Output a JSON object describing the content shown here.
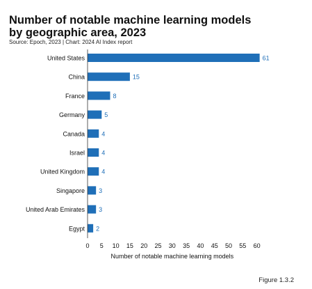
{
  "title": "Number of notable machine learning models by geographic area, 2023",
  "source": "Source: Epoch, 2023 | Chart: 2024 AI Index report",
  "figure_label": "Figure 1.3.2",
  "colors": {
    "bar": "#1f6fb8",
    "label": "#1f6fb8",
    "axis": "#333333"
  },
  "chart_data": {
    "type": "bar",
    "orientation": "horizontal",
    "categories": [
      "United States",
      "China",
      "France",
      "Germany",
      "Canada",
      "Israel",
      "United Kingdom",
      "Singapore",
      "United Arab Emirates",
      "Egypt"
    ],
    "values": [
      61,
      15,
      8,
      5,
      4,
      4,
      4,
      3,
      3,
      2
    ],
    "xlabel": "Number of notable machine learning models",
    "ylabel": "",
    "xlim": [
      0,
      62
    ],
    "xticks": [
      0,
      5,
      10,
      15,
      20,
      25,
      30,
      35,
      40,
      45,
      50,
      55,
      60
    ],
    "grid": false,
    "data_labels": true
  }
}
